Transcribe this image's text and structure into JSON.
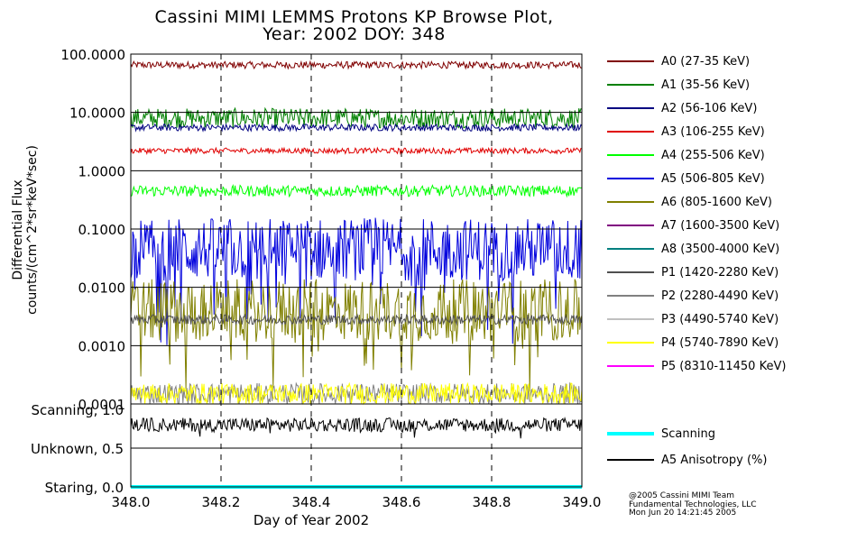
{
  "chart_data": {
    "type": "line",
    "title_line1": "Cassini MIMI LEMMS Protons KP Browse Plot,",
    "title_line2": "Year: 2002 DOY: 348",
    "xlabel": "Day of Year 2002",
    "ylabel_line1": "Differential Flux",
    "ylabel_line2": "counts/(cm^2*sr*keV*sec)",
    "xlim": [
      348.0,
      349.0
    ],
    "xticks": [
      "348.0",
      "348.2",
      "348.4",
      "348.6",
      "348.8",
      "349.0"
    ],
    "ylim": [
      0.0001,
      100.0
    ],
    "yscale": "log",
    "yticks": [
      "100.0000",
      "10.0000",
      "1.0000",
      "0.1000",
      "0.0100",
      "0.0010",
      "0.0001"
    ],
    "series": [
      {
        "name": "A0 (27-35 KeV)",
        "color": "#800000",
        "level": 65,
        "spread": 0.05
      },
      {
        "name": "A1 (35-56 KeV)",
        "color": "#008000",
        "level": 8.0,
        "spread": 0.14
      },
      {
        "name": "A2 (56-106 KeV)",
        "color": "#000080",
        "level": 5.5,
        "spread": 0.05
      },
      {
        "name": "A3 (106-255 KeV)",
        "color": "#e00000",
        "level": 2.2,
        "spread": 0.04
      },
      {
        "name": "A4 (255-506 KeV)",
        "color": "#00ff00",
        "level": 0.45,
        "spread": 0.08
      },
      {
        "name": "A5 (506-805 KeV)",
        "color": "#0000dd",
        "level": 0.045,
        "spread": 0.45
      },
      {
        "name": "A6 (805-1600 KeV)",
        "color": "#808000",
        "level": 0.004,
        "spread": 0.45
      },
      {
        "name": "A7 (1600-3500 KeV)",
        "color": "#800080",
        "level": null
      },
      {
        "name": "A8 (3500-4000 KeV)",
        "color": "#008080",
        "level": null
      },
      {
        "name": "P1 (1420-2280 KeV)",
        "color": "#505050",
        "level": 0.0028,
        "spread": 0.07
      },
      {
        "name": "P2 (2280-4490 KeV)",
        "color": "#808080",
        "level": 0.00015,
        "spread": 0.15
      },
      {
        "name": "P3 (4490-5740 KeV)",
        "color": "#c0c0c0",
        "level": null
      },
      {
        "name": "P4 (5740-7890 KeV)",
        "color": "#ffff00",
        "level": 0.00015,
        "spread": 0.15
      },
      {
        "name": "P5 (8310-11450 KeV)",
        "color": "#ff00ff",
        "level": null
      }
    ],
    "lower_panel": {
      "yticks": [
        "Scanning, 1.0",
        "Unknown, 0.5",
        "Staring, 0.0"
      ],
      "ylim": [
        0.0,
        1.0
      ],
      "series": [
        {
          "name": "Scanning",
          "color": "#00ffff",
          "level": 0.0
        },
        {
          "name": "A5 Anisotropy (%)",
          "color": "#000000",
          "level": 0.8,
          "spread": 0.06
        }
      ]
    }
  },
  "footer": {
    "line1": "@2005 Cassini MIMI Team",
    "line2": "Fundamental Technologies, LLC",
    "line3": "Mon Jun 20 14:21:45 2005"
  }
}
